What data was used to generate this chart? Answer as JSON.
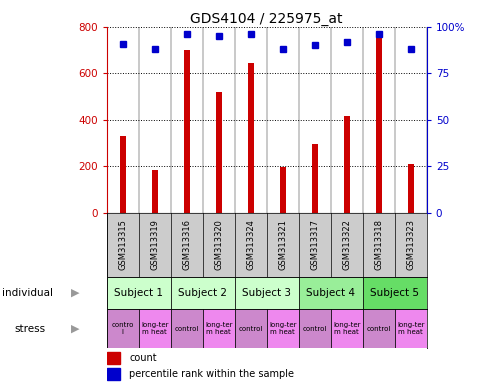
{
  "title": "GDS4104 / 225975_at",
  "samples": [
    "GSM313315",
    "GSM313319",
    "GSM313316",
    "GSM313320",
    "GSM313324",
    "GSM313321",
    "GSM313317",
    "GSM313322",
    "GSM313318",
    "GSM313323"
  ],
  "counts": [
    330,
    185,
    700,
    520,
    645,
    195,
    295,
    415,
    760,
    210
  ],
  "percentile_ranks": [
    91,
    88,
    96,
    95,
    96,
    88,
    90,
    92,
    96,
    88
  ],
  "bar_color": "#cc0000",
  "dot_color": "#0000cc",
  "subjects": [
    {
      "label": "Subject 1",
      "start": 0,
      "end": 2,
      "color": "#ccffcc"
    },
    {
      "label": "Subject 2",
      "start": 2,
      "end": 4,
      "color": "#ccffcc"
    },
    {
      "label": "Subject 3",
      "start": 4,
      "end": 6,
      "color": "#ccffcc"
    },
    {
      "label": "Subject 4",
      "start": 6,
      "end": 8,
      "color": "#99ee99"
    },
    {
      "label": "Subject 5",
      "start": 8,
      "end": 10,
      "color": "#66dd66"
    }
  ],
  "stress_labels": [
    "contro\nl",
    "long-ter\nm heat",
    "control",
    "long-ter\nm heat",
    "control",
    "long-ter\nm heat",
    "control",
    "long-ter\nm heat",
    "control",
    "long-ter\nm heat"
  ],
  "stress_colors_odd": "#cc88cc",
  "stress_colors_even": "#ee88ee",
  "ylim_left": [
    0,
    800
  ],
  "ylim_right": [
    0,
    100
  ],
  "yticks_left": [
    0,
    200,
    400,
    600,
    800
  ],
  "yticks_right": [
    0,
    25,
    50,
    75,
    100
  ],
  "ytick_labels_right": [
    "0",
    "25",
    "50",
    "75",
    "100%"
  ],
  "background_color": "#ffffff",
  "gsm_bg_color": "#cccccc",
  "bar_width": 0.18
}
